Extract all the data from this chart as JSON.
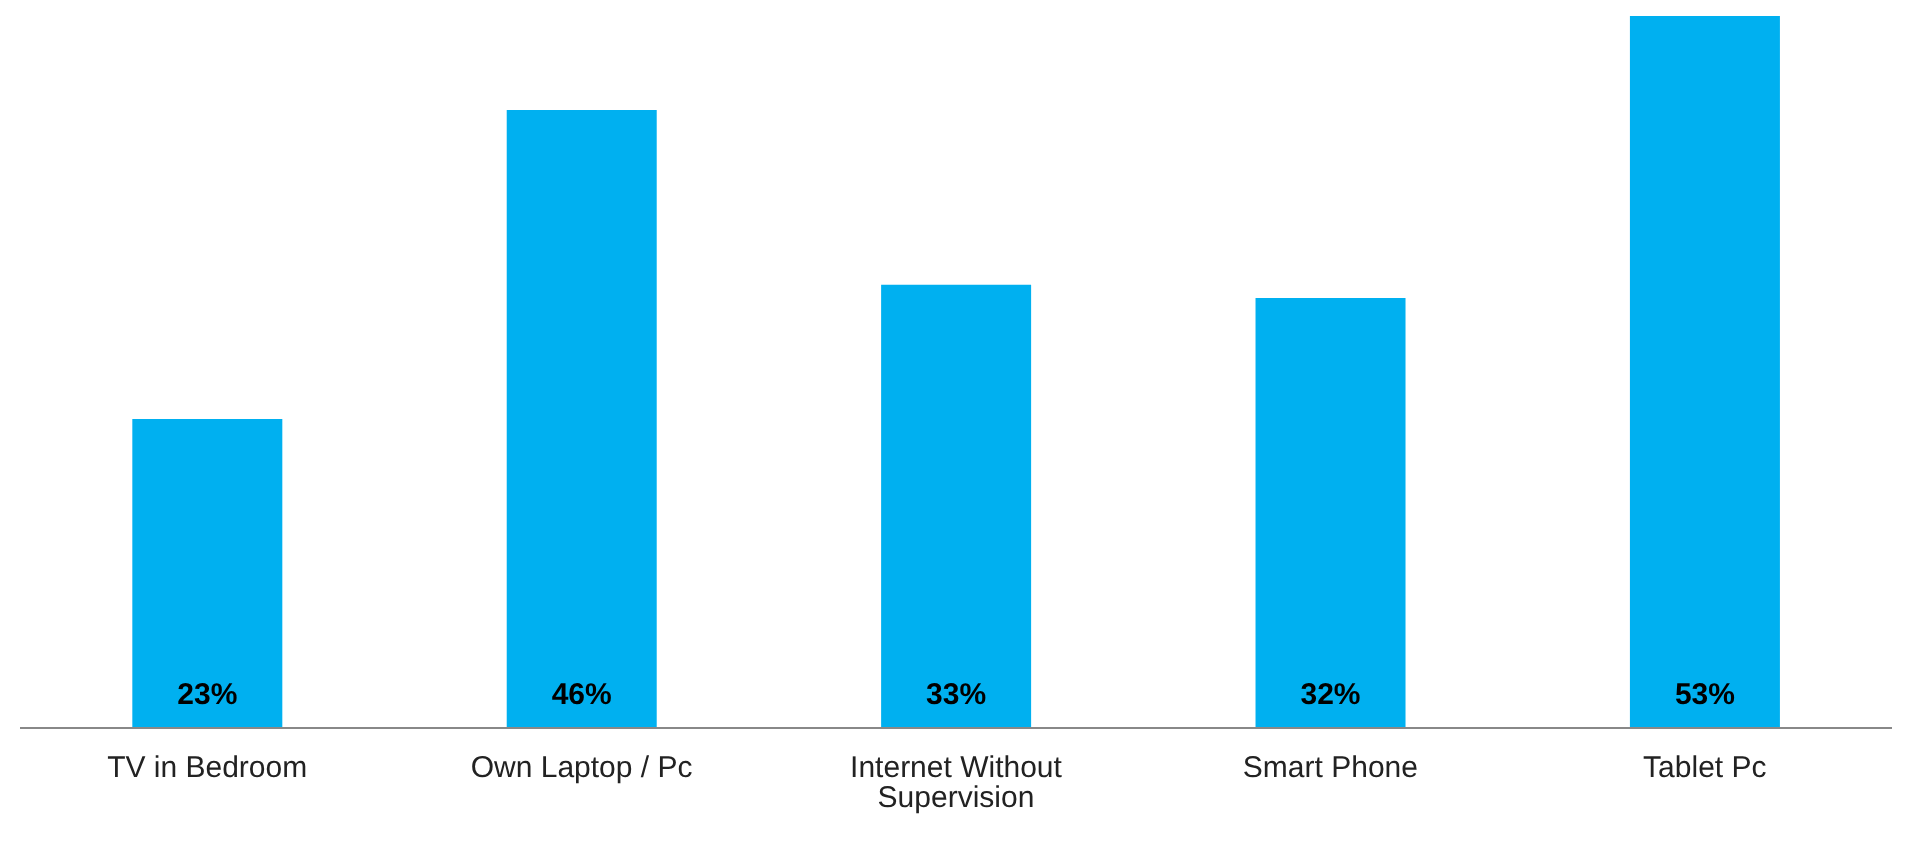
{
  "chart_data": {
    "type": "bar",
    "categories": [
      "TV in Bedroom",
      "Own Laptop / Pc",
      "Internet Without Supervision",
      "Smart Phone",
      "Tablet Pc"
    ],
    "values": [
      23,
      46,
      33,
      32,
      53
    ],
    "value_labels": [
      "23%",
      "46%",
      "33%",
      "32%",
      "53%"
    ],
    "color": "#00b0f0"
  }
}
